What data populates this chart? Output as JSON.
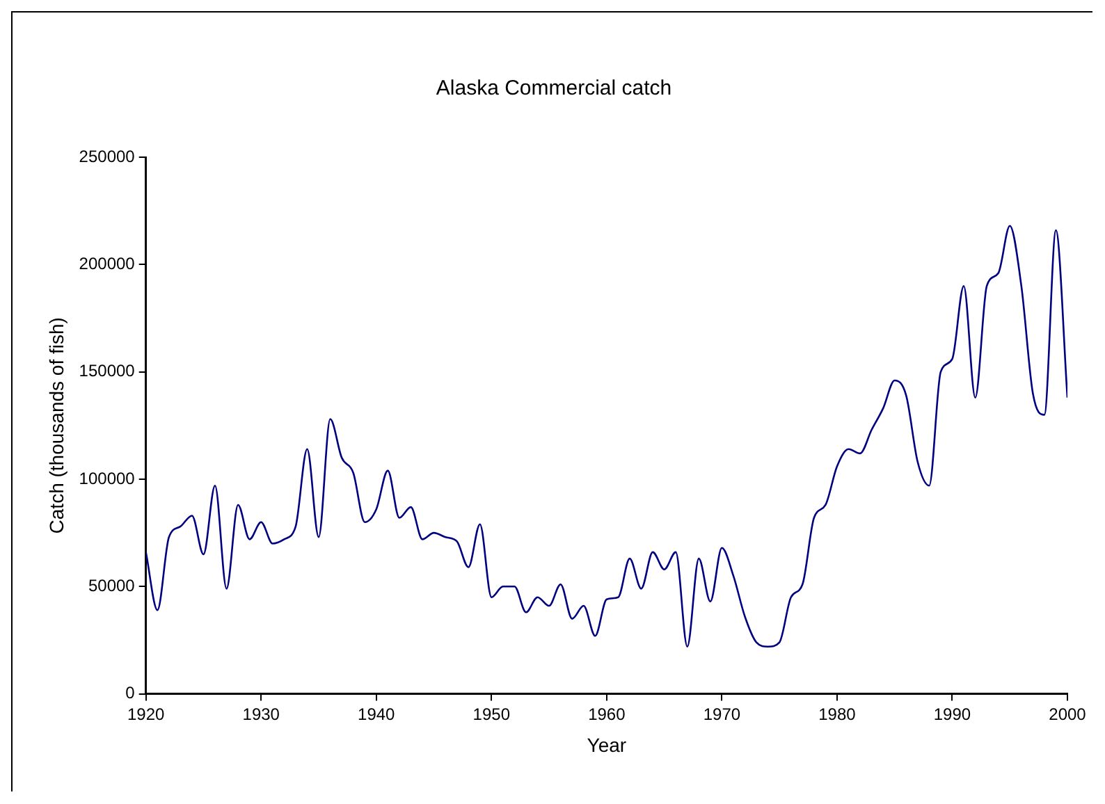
{
  "chart_data": {
    "type": "line",
    "title": "Alaska Commercial catch",
    "xlabel": "Year",
    "ylabel": "Catch (thousands of fish)",
    "x": [
      1920,
      1921,
      1922,
      1923,
      1924,
      1925,
      1926,
      1927,
      1928,
      1929,
      1930,
      1931,
      1932,
      1933,
      1934,
      1935,
      1936,
      1937,
      1938,
      1939,
      1940,
      1941,
      1942,
      1943,
      1944,
      1945,
      1946,
      1947,
      1948,
      1949,
      1950,
      1951,
      1952,
      1953,
      1954,
      1955,
      1956,
      1957,
      1958,
      1959,
      1960,
      1961,
      1962,
      1963,
      1964,
      1965,
      1966,
      1967,
      1968,
      1969,
      1970,
      1971,
      1972,
      1973,
      1974,
      1975,
      1976,
      1977,
      1978,
      1979,
      1980,
      1981,
      1982,
      1983,
      1984,
      1985,
      1986,
      1987,
      1988,
      1989,
      1990,
      1991,
      1992,
      1993,
      1994,
      1995,
      1996,
      1997,
      1998,
      1999,
      2000
    ],
    "series": [
      {
        "color": "#000080",
        "values": [
          66000,
          39000,
          73000,
          78000,
          83000,
          65000,
          97000,
          49000,
          88000,
          72000,
          80000,
          70000,
          72000,
          78000,
          114000,
          73000,
          128000,
          110000,
          103000,
          80000,
          86000,
          104000,
          82000,
          87000,
          72000,
          75000,
          73000,
          71000,
          59000,
          79000,
          45000,
          50000,
          50000,
          38000,
          45000,
          41000,
          51000,
          35000,
          41000,
          27000,
          44000,
          45000,
          63000,
          49000,
          66000,
          58000,
          66000,
          22000,
          63000,
          43000,
          68000,
          55000,
          36000,
          24000,
          22000,
          24000,
          45000,
          51000,
          82000,
          88000,
          106000,
          114000,
          112000,
          123000,
          133000,
          146000,
          139000,
          108000,
          97000,
          150000,
          156000,
          190000,
          138000,
          190000,
          196000,
          218000,
          190000,
          140000,
          130000,
          216000,
          138000
        ]
      }
    ],
    "xlim": [
      1920,
      2000
    ],
    "xticks": [
      1920,
      1930,
      1940,
      1950,
      1960,
      1970,
      1980,
      1990,
      2000
    ],
    "ylim": [
      0,
      250000
    ],
    "yticks": [
      0,
      50000,
      100000,
      150000,
      200000,
      250000
    ],
    "grid": false,
    "legend": false,
    "marker": "none",
    "line_style": "solid"
  }
}
